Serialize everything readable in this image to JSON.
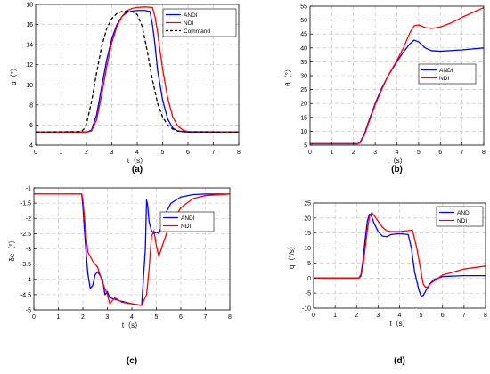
{
  "chart_data": [
    {
      "type": "line",
      "panel_label": "(a)",
      "xlabel": "t（s）",
      "ylabel": "α（°）",
      "xlim": [
        0,
        8
      ],
      "ylim": [
        4,
        18
      ],
      "xticks": [
        0,
        1,
        2,
        3,
        4,
        5,
        6,
        7,
        8
      ],
      "yticks": [
        4,
        6,
        8,
        10,
        12,
        14,
        16,
        18
      ],
      "grid": true,
      "legend": "top-right",
      "series": [
        {
          "name": "ANDI",
          "color": "#0000ff",
          "dash": "solid",
          "x": [
            0,
            2.0,
            2.2,
            2.4,
            2.6,
            2.8,
            3.0,
            3.2,
            3.4,
            3.6,
            3.8,
            4.0,
            4.3,
            4.5,
            4.6,
            4.7,
            4.8,
            5.0,
            5.2,
            5.4,
            5.6,
            6.0,
            8
          ],
          "y": [
            5.3,
            5.3,
            5.5,
            7.0,
            9.8,
            12.5,
            14.6,
            16.0,
            16.8,
            17.2,
            17.35,
            17.4,
            17.4,
            17.3,
            16.0,
            14.0,
            11.5,
            8.5,
            6.6,
            5.7,
            5.4,
            5.3,
            5.3
          ]
        },
        {
          "name": "NDI",
          "color": "#ff0000",
          "dash": "solid",
          "x": [
            0,
            2.0,
            2.2,
            2.4,
            2.6,
            2.8,
            3.0,
            3.2,
            3.4,
            3.6,
            3.8,
            4.0,
            4.3,
            4.6,
            4.7,
            4.8,
            4.9,
            5.0,
            5.2,
            5.4,
            5.6,
            5.8,
            6.0,
            8
          ],
          "y": [
            5.3,
            5.3,
            5.4,
            6.5,
            9.0,
            11.8,
            14.2,
            15.8,
            16.8,
            17.4,
            17.6,
            17.7,
            17.75,
            17.7,
            16.8,
            15.3,
            13.4,
            11.6,
            8.7,
            6.8,
            5.9,
            5.5,
            5.35,
            5.3
          ]
        },
        {
          "name": "Command",
          "color": "#000000",
          "dash": "dashed",
          "x": [
            0,
            1.8,
            1.9,
            2.0,
            2.2,
            2.4,
            2.6,
            2.8,
            3.0,
            3.2,
            3.4,
            3.6,
            3.8,
            4.0,
            4.2,
            4.4,
            4.6,
            4.8,
            5.0,
            5.2,
            5.4,
            5.6,
            5.8,
            6.0,
            8
          ],
          "y": [
            5.3,
            5.35,
            5.6,
            6.1,
            8.3,
            11.2,
            13.8,
            15.6,
            16.6,
            17.1,
            17.3,
            17.35,
            17.3,
            17.0,
            15.8,
            13.3,
            10.5,
            8.2,
            6.8,
            6.0,
            5.6,
            5.4,
            5.35,
            5.3,
            5.3
          ]
        }
      ]
    },
    {
      "type": "line",
      "panel_label": "(b)",
      "xlabel": "t（s）",
      "ylabel": "θ（°）",
      "xlim": [
        0,
        8
      ],
      "ylim": [
        5,
        55
      ],
      "xticks": [
        0,
        1,
        2,
        3,
        4,
        5,
        6,
        7,
        8
      ],
      "yticks": [
        5,
        10,
        15,
        20,
        25,
        30,
        35,
        40,
        45,
        50,
        55
      ],
      "grid": true,
      "legend": "center-right",
      "series": [
        {
          "name": "ANDI",
          "color": "#0000ff",
          "dash": "solid",
          "x": [
            0,
            2.2,
            2.3,
            2.5,
            2.7,
            3.0,
            3.3,
            3.6,
            4.0,
            4.3,
            4.6,
            4.8,
            5.0,
            5.3,
            5.6,
            6.0,
            7.0,
            8.0
          ],
          "y": [
            5.5,
            5.5,
            6.0,
            9.0,
            13.5,
            20.0,
            25.5,
            30.0,
            35.0,
            38.5,
            41.5,
            42.8,
            42.2,
            40.0,
            39.0,
            38.8,
            39.3,
            40.0
          ]
        },
        {
          "name": "NDI",
          "color": "#ff0000",
          "dash": "solid",
          "x": [
            0,
            2.2,
            2.3,
            2.5,
            2.7,
            3.0,
            3.3,
            3.6,
            4.0,
            4.3,
            4.6,
            4.8,
            5.0,
            5.3,
            5.6,
            6.0,
            6.5,
            7.0,
            7.5,
            8.0
          ],
          "y": [
            5.5,
            5.5,
            5.8,
            8.5,
            13.0,
            19.5,
            25.0,
            30.0,
            35.5,
            40.0,
            45.5,
            48.0,
            48.3,
            47.3,
            47.0,
            47.5,
            49.0,
            51.0,
            52.8,
            54.5
          ]
        }
      ]
    },
    {
      "type": "line",
      "panel_label": "(c)",
      "xlabel": "t（s）",
      "ylabel": "δe（°）",
      "xlim": [
        0,
        8
      ],
      "ylim": [
        -5,
        -1
      ],
      "xticks": [
        0,
        1,
        2,
        3,
        4,
        5,
        6,
        7,
        8
      ],
      "yticks": [
        -5,
        -4.5,
        -4,
        -3.5,
        -3,
        -2.5,
        -2,
        -1.5,
        -1
      ],
      "grid": true,
      "legend": "center-right",
      "series": [
        {
          "name": "ANDI",
          "color": "#0000ff",
          "dash": "solid",
          "x": [
            0,
            1.95,
            2.0,
            2.1,
            2.2,
            2.3,
            2.4,
            2.5,
            2.6,
            2.8,
            2.9,
            3.0,
            3.1,
            3.5,
            4.0,
            4.4,
            4.55,
            4.6,
            4.65,
            4.7,
            4.8,
            4.9,
            5.0,
            5.1,
            5.2,
            5.4,
            5.6,
            6.0,
            6.5,
            7.0,
            8.0
          ],
          "y": [
            -1.2,
            -1.2,
            -1.6,
            -2.8,
            -3.8,
            -4.3,
            -4.2,
            -3.85,
            -3.75,
            -4.0,
            -4.5,
            -4.4,
            -4.6,
            -4.7,
            -4.8,
            -4.85,
            -3.0,
            -1.4,
            -1.6,
            -2.1,
            -2.4,
            -2.5,
            -2.45,
            -2.5,
            -2.3,
            -1.8,
            -1.5,
            -1.3,
            -1.22,
            -1.2,
            -1.2
          ]
        },
        {
          "name": "NDI",
          "color": "#ff0000",
          "dash": "solid",
          "x": [
            0,
            1.95,
            2.0,
            2.1,
            2.2,
            2.4,
            2.6,
            2.8,
            3.0,
            3.1,
            3.2,
            3.3,
            3.6,
            4.0,
            4.4,
            4.6,
            4.7,
            4.8,
            4.9,
            5.0,
            5.1,
            5.2,
            5.5,
            6.0,
            6.5,
            7.0,
            8.0
          ],
          "y": [
            -1.2,
            -1.2,
            -1.4,
            -2.3,
            -3.1,
            -3.4,
            -3.6,
            -4.1,
            -4.5,
            -4.8,
            -4.7,
            -4.6,
            -4.75,
            -4.8,
            -4.85,
            -4.5,
            -3.7,
            -2.6,
            -2.4,
            -2.9,
            -3.25,
            -3.0,
            -2.3,
            -1.65,
            -1.35,
            -1.25,
            -1.2
          ]
        }
      ]
    },
    {
      "type": "line",
      "panel_label": "(d)",
      "xlabel": "t（s）",
      "ylabel": "q（°/s）",
      "xlim": [
        0,
        8
      ],
      "ylim": [
        -10,
        25
      ],
      "xticks": [
        0,
        1,
        2,
        3,
        4,
        5,
        6,
        7,
        8
      ],
      "yticks": [
        -10,
        -5,
        0,
        5,
        10,
        15,
        20,
        25
      ],
      "grid": true,
      "legend": "top-right",
      "series": [
        {
          "name": "ANDI",
          "color": "#0000ff",
          "dash": "solid",
          "x": [
            0,
            2.1,
            2.2,
            2.3,
            2.4,
            2.5,
            2.6,
            2.7,
            2.8,
            3.0,
            3.2,
            3.4,
            3.6,
            4.0,
            4.4,
            4.55,
            4.7,
            4.9,
            5.0,
            5.1,
            5.2,
            5.4,
            5.6,
            6.0,
            7.0,
            8.0
          ],
          "y": [
            0,
            0,
            1.0,
            6.0,
            13.0,
            19.0,
            21.3,
            20.5,
            18.5,
            15.5,
            14.0,
            13.8,
            14.5,
            14.8,
            14.5,
            10.0,
            2.0,
            -4.0,
            -6.0,
            -5.8,
            -4.5,
            -2.0,
            -0.5,
            0.5,
            0.8,
            0.8
          ]
        },
        {
          "name": "NDI",
          "color": "#ff0000",
          "dash": "solid",
          "x": [
            0,
            2.1,
            2.2,
            2.3,
            2.4,
            2.5,
            2.6,
            2.7,
            2.8,
            3.0,
            3.2,
            3.4,
            3.6,
            4.0,
            4.4,
            4.6,
            4.8,
            5.0,
            5.1,
            5.2,
            5.3,
            5.5,
            6.0,
            7.0,
            8.0
          ],
          "y": [
            0,
            0,
            0.5,
            4.0,
            10.0,
            16.0,
            20.5,
            21.8,
            21.0,
            19.0,
            17.0,
            15.8,
            15.5,
            15.5,
            15.8,
            16.0,
            10.0,
            2.0,
            -2.0,
            -3.0,
            -3.0,
            -1.5,
            1.0,
            3.0,
            4.0
          ]
        }
      ]
    }
  ]
}
